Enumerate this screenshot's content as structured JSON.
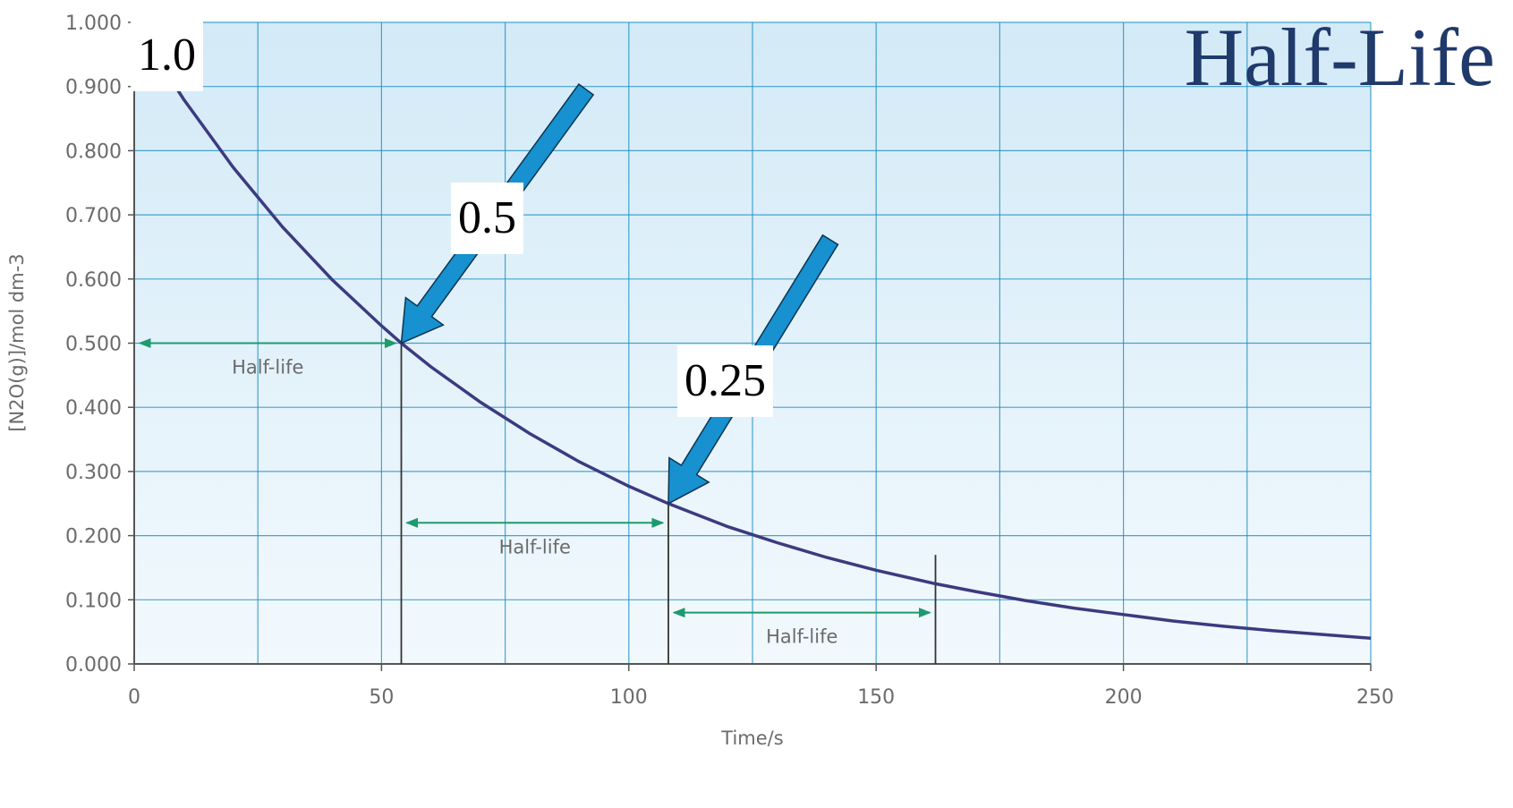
{
  "slide_title": "Half-Life",
  "colors": {
    "curve": "#3c3a80",
    "grid": "#1f8fc4",
    "half_life_arrow": "#1e9a6e",
    "callout_arrow": "#1791cf",
    "plot_bg_top": "#d3eaf7",
    "plot_bg_bottom": "#f2f9fd"
  },
  "callouts": [
    {
      "label": "1.0",
      "value": 1.0
    },
    {
      "label": "0.5",
      "value": 0.5
    },
    {
      "label": "0.25",
      "value": 0.25
    }
  ],
  "chart_data": {
    "type": "line",
    "xlabel": "Time/s",
    "ylabel": "[N2O(g)]/mol dm-3",
    "xlim": [
      0,
      250
    ],
    "ylim": [
      0,
      1.0
    ],
    "x_ticks": [
      "0",
      "50",
      "100",
      "150",
      "200",
      "250"
    ],
    "y_ticks": [
      "0.000",
      "0.100",
      "0.200",
      "0.300",
      "0.400",
      "0.500",
      "0.600",
      "0.700",
      "0.800",
      "0.900",
      "1.000"
    ],
    "grid": true,
    "series": [
      {
        "x": [
          0,
          10,
          20,
          30,
          40,
          50,
          54,
          60,
          70,
          80,
          90,
          100,
          108,
          120,
          130,
          140,
          150,
          162,
          170,
          180,
          190,
          200,
          210,
          220,
          230,
          240,
          250
        ],
        "y": [
          1.0,
          0.88,
          0.774,
          0.681,
          0.599,
          0.527,
          0.5,
          0.463,
          0.408,
          0.359,
          0.315,
          0.277,
          0.25,
          0.214,
          0.189,
          0.166,
          0.146,
          0.125,
          0.113,
          0.099,
          0.087,
          0.077,
          0.067,
          0.059,
          0.052,
          0.046,
          0.04
        ]
      }
    ],
    "half_life_markers": [
      {
        "label": "Half-life",
        "from": 0,
        "to": 54,
        "level": 0.5
      },
      {
        "label": "Half-life",
        "from": 54,
        "to": 108,
        "level": 0.22
      },
      {
        "label": "Half-life",
        "from": 108,
        "to": 162,
        "level": 0.08
      }
    ],
    "vertical_lines": [
      {
        "x": 54,
        "top": 0.5
      },
      {
        "x": 108,
        "top": 0.25
      },
      {
        "x": 162,
        "top": 0.17
      }
    ]
  }
}
